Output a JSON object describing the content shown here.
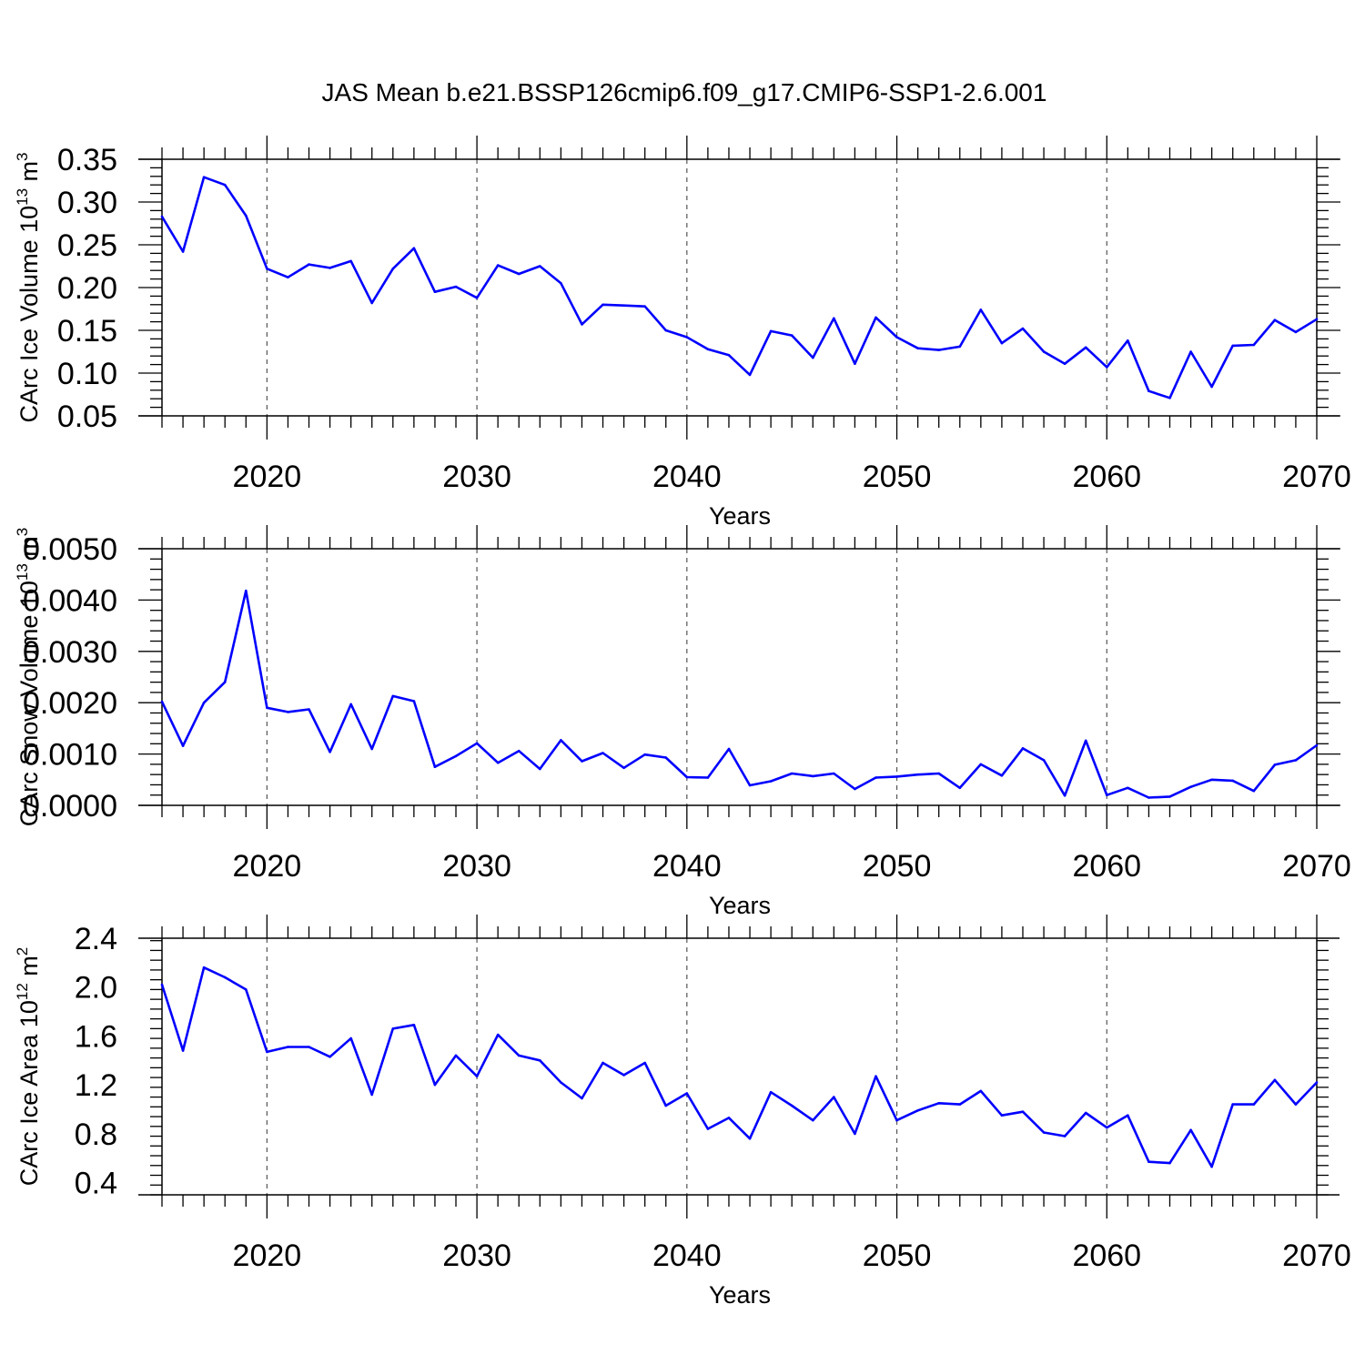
{
  "figure": {
    "title": "JAS Mean b.e21.BSSP126cmip6.f09_g17.CMIP6-SSP1-2.6.001",
    "line_color": "#0000ff",
    "axis_color": "#000000",
    "grid_color": "#555555"
  },
  "chart_data": [
    {
      "type": "line",
      "xlabel": "Years",
      "ylabel": "CArc Ice Volume 10",
      "ylabel_exponent": "13",
      "ylabel_unit": "m",
      "ylabel_unit_exponent": "3",
      "xlim": [
        2015,
        2070
      ],
      "ylim": [
        0.05,
        0.35
      ],
      "xticks": [
        "2020",
        "2030",
        "2040",
        "2050",
        "2060",
        "2070"
      ],
      "yticks": [
        "0.05",
        "0.10",
        "0.15",
        "0.20",
        "0.25",
        "0.30",
        "0.35"
      ],
      "ytick_values": [
        0.05,
        0.1,
        0.15,
        0.2,
        0.25,
        0.3,
        0.35
      ],
      "grid": "vertical dashed lines at labeled years",
      "x": [
        2015,
        2016,
        2017,
        2018,
        2019,
        2020,
        2021,
        2022,
        2023,
        2024,
        2025,
        2026,
        2027,
        2028,
        2029,
        2030,
        2031,
        2032,
        2033,
        2034,
        2035,
        2036,
        2037,
        2038,
        2039,
        2040,
        2041,
        2042,
        2043,
        2044,
        2045,
        2046,
        2047,
        2048,
        2049,
        2050,
        2051,
        2052,
        2053,
        2054,
        2055,
        2056,
        2057,
        2058,
        2059,
        2060,
        2061,
        2062,
        2063,
        2064,
        2065,
        2066,
        2067,
        2068,
        2069,
        2070
      ],
      "y": [
        0.283,
        0.242,
        0.329,
        0.32,
        0.284,
        0.222,
        0.212,
        0.227,
        0.223,
        0.231,
        0.182,
        0.222,
        0.246,
        0.195,
        0.201,
        0.188,
        0.226,
        0.216,
        0.225,
        0.205,
        0.157,
        0.18,
        0.179,
        0.178,
        0.15,
        0.142,
        0.128,
        0.121,
        0.098,
        0.149,
        0.144,
        0.118,
        0.164,
        0.111,
        0.165,
        0.142,
        0.129,
        0.127,
        0.131,
        0.174,
        0.135,
        0.152,
        0.125,
        0.111,
        0.13,
        0.107,
        0.138,
        0.079,
        0.071,
        0.125,
        0.084,
        0.132,
        0.133,
        0.162,
        0.148,
        0.163
      ]
    },
    {
      "type": "line",
      "xlabel": "Years",
      "ylabel": "CArc Snow Volume 10",
      "ylabel_exponent": "13",
      "ylabel_unit": "m",
      "ylabel_unit_exponent": "3",
      "xlim": [
        2015,
        2070
      ],
      "ylim": [
        0.0,
        0.005
      ],
      "xticks": [
        "2020",
        "2030",
        "2040",
        "2050",
        "2060",
        "2070"
      ],
      "yticks": [
        "0.0000",
        "0.0010",
        "0.0020",
        "0.0030",
        "0.0040",
        "0.0050"
      ],
      "ytick_values": [
        0.0,
        0.001,
        0.002,
        0.003,
        0.004,
        0.005
      ],
      "grid": "vertical dashed lines at labeled years",
      "x": [
        2015,
        2016,
        2017,
        2018,
        2019,
        2020,
        2021,
        2022,
        2023,
        2024,
        2025,
        2026,
        2027,
        2028,
        2029,
        2030,
        2031,
        2032,
        2033,
        2034,
        2035,
        2036,
        2037,
        2038,
        2039,
        2040,
        2041,
        2042,
        2043,
        2044,
        2045,
        2046,
        2047,
        2048,
        2049,
        2050,
        2051,
        2052,
        2053,
        2054,
        2055,
        2056,
        2057,
        2058,
        2059,
        2060,
        2061,
        2062,
        2063,
        2064,
        2065,
        2066,
        2067,
        2068,
        2069,
        2070
      ],
      "y": [
        0.00202,
        0.00116,
        0.002,
        0.0024,
        0.00418,
        0.0019,
        0.00182,
        0.00187,
        0.00104,
        0.00197,
        0.0011,
        0.00213,
        0.00203,
        0.00075,
        0.00096,
        0.00121,
        0.00083,
        0.00106,
        0.00071,
        0.00127,
        0.00086,
        0.00102,
        0.00073,
        0.00099,
        0.00093,
        0.00055,
        0.00054,
        0.0011,
        0.00039,
        0.00047,
        0.00062,
        0.00057,
        0.00062,
        0.00032,
        0.00054,
        0.00056,
        0.0006,
        0.00062,
        0.00034,
        0.0008,
        0.00058,
        0.00111,
        0.00088,
        0.00019,
        0.00126,
        0.0002,
        0.00034,
        0.00015,
        0.00017,
        0.00036,
        0.0005,
        0.00048,
        0.00028,
        0.00079,
        0.00088,
        0.00117
      ]
    },
    {
      "type": "line",
      "xlabel": "Years",
      "ylabel": "CArc Ice Area 10",
      "ylabel_exponent": "12",
      "ylabel_unit": "m",
      "ylabel_unit_exponent": "2",
      "xlim": [
        2015,
        2070
      ],
      "ylim": [
        0.3,
        2.4
      ],
      "xticks": [
        "2020",
        "2030",
        "2040",
        "2050",
        "2060",
        "2070"
      ],
      "yticks": [
        "0.4",
        "0.8",
        "1.2",
        "1.6",
        "2.0",
        "2.4"
      ],
      "ytick_values": [
        0.4,
        0.8,
        1.2,
        1.6,
        2.0,
        2.4
      ],
      "grid": "vertical dashed lines at labeled years",
      "x": [
        2015,
        2016,
        2017,
        2018,
        2019,
        2020,
        2021,
        2022,
        2023,
        2024,
        2025,
        2026,
        2027,
        2028,
        2029,
        2030,
        2031,
        2032,
        2033,
        2034,
        2035,
        2036,
        2037,
        2038,
        2039,
        2040,
        2041,
        2042,
        2043,
        2044,
        2045,
        2046,
        2047,
        2048,
        2049,
        2050,
        2051,
        2052,
        2053,
        2054,
        2055,
        2056,
        2057,
        2058,
        2059,
        2060,
        2061,
        2062,
        2063,
        2064,
        2065,
        2066,
        2067,
        2068,
        2069,
        2070
      ],
      "y": [
        2.02,
        1.48,
        2.16,
        2.08,
        1.98,
        1.47,
        1.51,
        1.51,
        1.43,
        1.58,
        1.12,
        1.66,
        1.69,
        1.2,
        1.44,
        1.27,
        1.61,
        1.44,
        1.4,
        1.22,
        1.09,
        1.38,
        1.28,
        1.38,
        1.03,
        1.13,
        0.84,
        0.93,
        0.76,
        1.14,
        1.03,
        0.91,
        1.1,
        0.8,
        1.27,
        0.91,
        0.99,
        1.05,
        1.04,
        1.15,
        0.95,
        0.98,
        0.81,
        0.78,
        0.97,
        0.85,
        0.95,
        0.57,
        0.56,
        0.83,
        0.53,
        1.04,
        1.04,
        1.24,
        1.04,
        1.22
      ]
    }
  ]
}
